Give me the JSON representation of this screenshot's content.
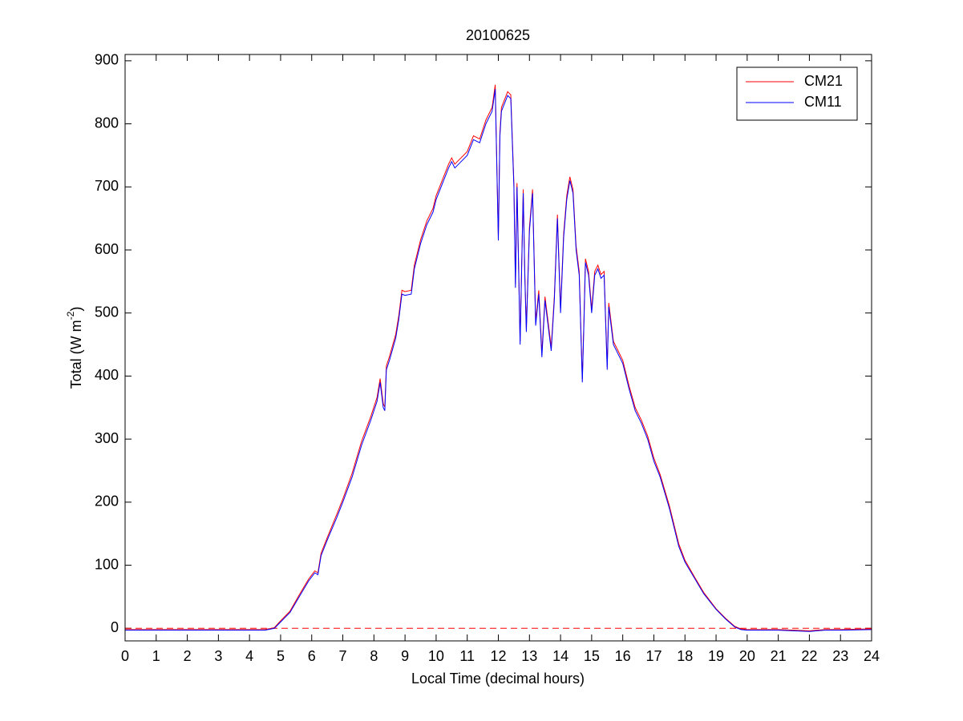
{
  "chart_data": {
    "type": "line",
    "title": "20100625",
    "xlabel": "Local Time (decimal hours)",
    "ylabel": [
      "Total (W m",
      "-2",
      ")"
    ],
    "xlim": [
      0,
      24
    ],
    "ylim": [
      -20,
      910
    ],
    "xticks": [
      0,
      1,
      2,
      3,
      4,
      5,
      6,
      7,
      8,
      9,
      10,
      11,
      12,
      13,
      14,
      15,
      16,
      17,
      18,
      19,
      20,
      21,
      22,
      23,
      24
    ],
    "yticks": [
      0,
      100,
      200,
      300,
      400,
      500,
      600,
      700,
      800,
      900
    ],
    "grid": false,
    "legend_location": "northeast",
    "reference_line": {
      "y": 0,
      "color": "#ff0000",
      "style": "dashed"
    },
    "x": [
      0,
      1,
      2,
      3,
      4,
      4.5,
      4.8,
      5.0,
      5.3,
      5.6,
      5.9,
      6.1,
      6.2,
      6.3,
      6.5,
      6.8,
      7.0,
      7.3,
      7.6,
      7.9,
      8.1,
      8.2,
      8.3,
      8.35,
      8.4,
      8.5,
      8.7,
      8.8,
      8.9,
      9.0,
      9.2,
      9.3,
      9.5,
      9.7,
      9.9,
      10.0,
      10.2,
      10.4,
      10.5,
      10.6,
      10.8,
      11.0,
      11.2,
      11.4,
      11.6,
      11.8,
      11.9,
      12.0,
      12.05,
      12.1,
      12.3,
      12.4,
      12.5,
      12.55,
      12.6,
      12.7,
      12.8,
      12.85,
      12.9,
      13.0,
      13.1,
      13.2,
      13.3,
      13.4,
      13.5,
      13.6,
      13.7,
      13.8,
      13.9,
      14.0,
      14.1,
      14.2,
      14.3,
      14.4,
      14.5,
      14.6,
      14.7,
      14.75,
      14.8,
      14.9,
      15.0,
      15.1,
      15.2,
      15.3,
      15.4,
      15.5,
      15.55,
      15.6,
      15.7,
      15.8,
      16.0,
      16.2,
      16.4,
      16.6,
      16.8,
      17.0,
      17.2,
      17.5,
      17.8,
      18.0,
      18.3,
      18.6,
      19.0,
      19.3,
      19.6,
      19.8,
      20.0,
      21,
      22,
      22.5,
      23,
      24
    ],
    "series": [
      {
        "name": "CM21",
        "color": "#ff0000",
        "values": [
          -2,
          -2,
          -2,
          -2,
          -2,
          -2,
          1,
          12,
          27,
          53,
          78,
          91,
          88,
          119,
          144,
          180,
          205,
          246,
          296,
          336,
          366,
          396,
          356,
          351,
          416,
          431,
          466,
          496,
          536,
          534,
          536,
          576,
          616,
          646,
          666,
          686,
          711,
          736,
          746,
          736,
          746,
          756,
          781,
          776,
          806,
          826,
          862,
          620,
          786,
          826,
          851,
          846,
          706,
          546,
          706,
          455,
          696,
          566,
          476,
          636,
          696,
          486,
          536,
          436,
          526,
          486,
          446,
          526,
          656,
          506,
          626,
          686,
          716,
          696,
          606,
          566,
          395,
          486,
          586,
          566,
          506,
          566,
          576,
          561,
          566,
          415,
          516,
          496,
          455,
          445,
          425,
          385,
          350,
          330,
          305,
          270,
          244,
          194,
          134,
          108,
          82,
          57,
          31,
          16,
          3,
          -1,
          -2,
          -2,
          -4,
          -2,
          -2,
          -1
        ]
      },
      {
        "name": "CM11",
        "color": "#0000ff",
        "values": [
          -3,
          -3,
          -3,
          -3,
          -3,
          -3,
          0,
          10,
          25,
          50,
          75,
          88,
          85,
          115,
          140,
          175,
          200,
          240,
          290,
          330,
          360,
          390,
          350,
          345,
          410,
          425,
          460,
          490,
          530,
          528,
          530,
          570,
          610,
          640,
          660,
          680,
          705,
          730,
          740,
          730,
          740,
          750,
          775,
          770,
          800,
          820,
          855,
          615,
          780,
          820,
          845,
          840,
          700,
          540,
          700,
          450,
          690,
          560,
          470,
          630,
          690,
          480,
          530,
          430,
          520,
          480,
          440,
          520,
          650,
          500,
          620,
          680,
          710,
          690,
          600,
          560,
          390,
          480,
          580,
          560,
          500,
          560,
          570,
          555,
          560,
          410,
          510,
          490,
          450,
          440,
          420,
          380,
          345,
          325,
          300,
          265,
          240,
          190,
          130,
          105,
          80,
          55,
          30,
          15,
          2,
          -2,
          -3,
          -3,
          -5,
          -3,
          -3,
          -2
        ]
      }
    ]
  }
}
